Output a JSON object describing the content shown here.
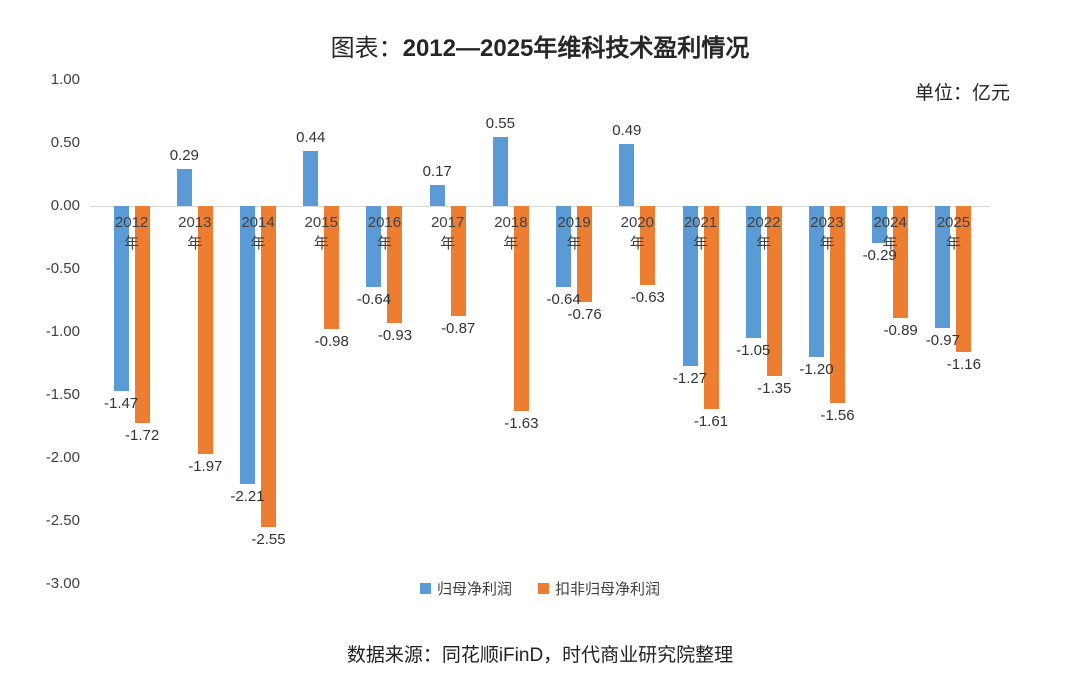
{
  "title_prefix": "图表：",
  "title_main": "2012—2025年维科技术盈利情况",
  "unit_label": "单位：亿元",
  "source": "数据来源：同花顺iFinD，时代商业研究院整理",
  "chart_data": {
    "type": "bar",
    "categories": [
      "2012年",
      "2013年",
      "2014年",
      "2015年",
      "2016年",
      "2017年",
      "2018年",
      "2019年",
      "2020年",
      "2021年",
      "2022年",
      "2023年",
      "2024年",
      "2025年"
    ],
    "series": [
      {
        "name": "归母净利润",
        "color": "#5B9BD5",
        "values": [
          -1.47,
          0.29,
          -2.21,
          0.44,
          -0.64,
          0.17,
          0.55,
          -0.64,
          0.49,
          -1.27,
          -1.05,
          -1.2,
          -0.29,
          -0.97
        ]
      },
      {
        "name": "扣非归母净利润",
        "color": "#ED7D31",
        "values": [
          -1.72,
          -1.97,
          -2.55,
          -0.98,
          -0.93,
          -0.87,
          -1.63,
          -0.76,
          -0.63,
          -1.61,
          -1.35,
          -1.56,
          -0.89,
          -1.16
        ]
      }
    ],
    "ylabel": "",
    "xlabel": "",
    "ylim": [
      -3.0,
      1.0
    ],
    "ytick_labels": [
      "1.00",
      "0.50",
      "0.00",
      "-0.50",
      "-1.00",
      "-1.50",
      "-2.00",
      "-2.50",
      "-3.00"
    ],
    "grid": false,
    "legend_position": "bottom",
    "axis_line_color": "#d9d9d9",
    "label_color": "#333333"
  }
}
